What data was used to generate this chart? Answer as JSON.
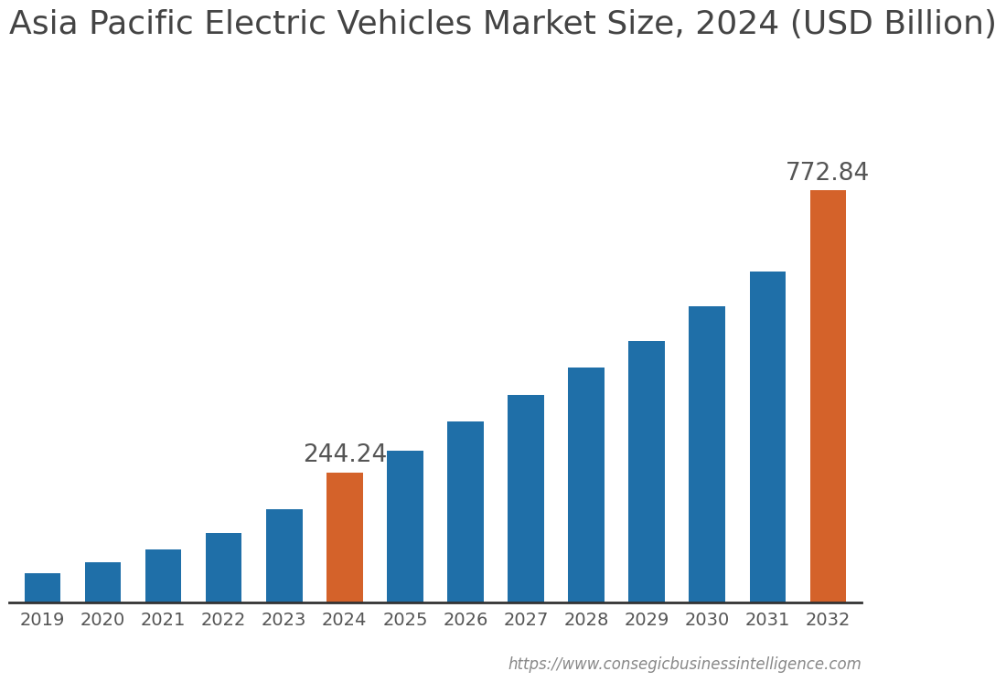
{
  "title": "Asia Pacific Electric Vehicles Market Size, 2024 (USD Billion)",
  "categories": [
    "2019",
    "2020",
    "2021",
    "2022",
    "2023",
    "2024",
    "2025",
    "2026",
    "2027",
    "2028",
    "2029",
    "2030",
    "2031",
    "2032"
  ],
  "values": [
    55,
    75,
    100,
    130,
    175,
    244.24,
    285,
    340,
    390,
    440,
    490,
    555,
    620,
    772.84
  ],
  "bar_colors": [
    "#1f6fa8",
    "#1f6fa8",
    "#1f6fa8",
    "#1f6fa8",
    "#1f6fa8",
    "#d4622a",
    "#1f6fa8",
    "#1f6fa8",
    "#1f6fa8",
    "#1f6fa8",
    "#1f6fa8",
    "#1f6fa8",
    "#1f6fa8",
    "#d4622a"
  ],
  "labeled_bars": [
    5,
    13
  ],
  "labels": [
    "244.24",
    "772.84"
  ],
  "background_color": "#ffffff",
  "title_fontsize": 26,
  "tick_fontsize": 14,
  "label_fontsize": 19,
  "watermark": "https://www.consegicbusinessintelligence.com",
  "watermark_fontsize": 12,
  "ylim": [
    0,
    1000
  ]
}
